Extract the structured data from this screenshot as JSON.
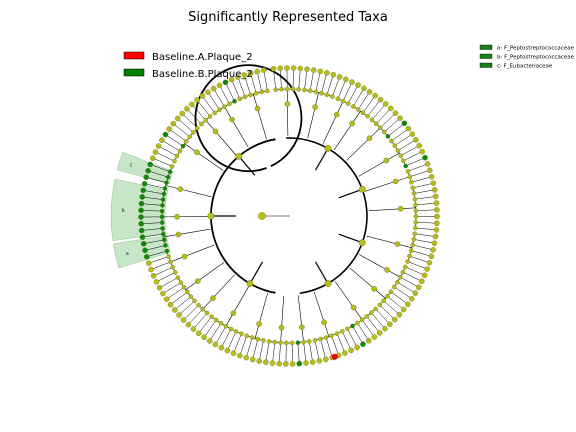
{
  "title": "Significantly Represented Taxa",
  "legend": [
    {
      "label": "Baseline.A.Plaque_2",
      "color": "#ff0000"
    },
    {
      "label": "Baseline.B.Plaque_2",
      "color": "#008000"
    }
  ],
  "clade_legend": [
    {
      "label": "a: F_Peptostreptococcaceae",
      "color": "#1a7f1a"
    },
    {
      "label": "b: F_Peptostreptococcaceae",
      "color": "#1a7f1a"
    },
    {
      "label": "c: F_Eubacteriaceae",
      "color": "#1a7f1a"
    }
  ],
  "sector_letters": [
    "a",
    "b",
    "c"
  ],
  "colors": {
    "node_default": "#b5bd1e",
    "node_stroke": "#6b6b10",
    "branch": "#000000",
    "highlight_fill": "#a9d8a9"
  }
}
